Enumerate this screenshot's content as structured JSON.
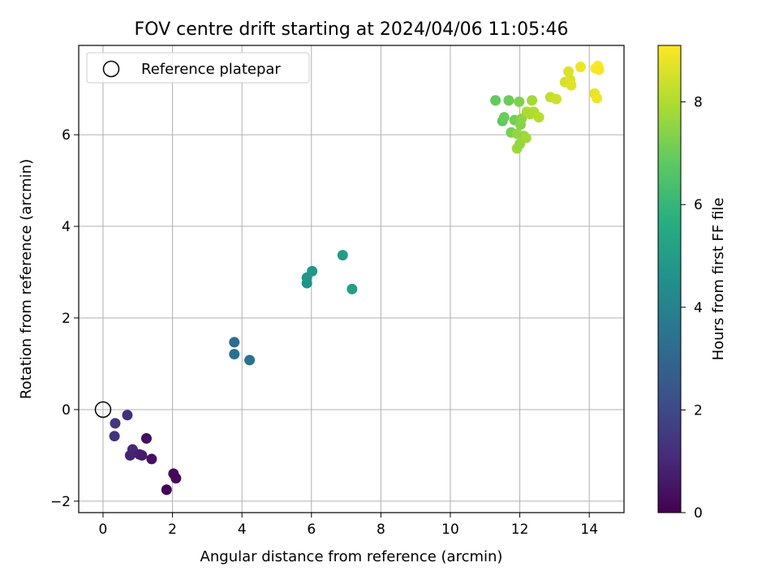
{
  "chart_data": {
    "type": "scatter",
    "title": "FOV centre drift starting at 2024/04/06 11:05:46",
    "xlabel": "Angular distance from reference (arcmin)",
    "ylabel": "Rotation from reference (arcmin)",
    "xlim": [
      -0.7,
      15.0
    ],
    "ylim": [
      -2.25,
      7.95
    ],
    "xticks": [
      0,
      2,
      4,
      6,
      8,
      10,
      12,
      14
    ],
    "yticks": [
      -2,
      0,
      2,
      4,
      6
    ],
    "grid": true,
    "legend": {
      "placement": "top-left",
      "entries": [
        "Reference platepar"
      ]
    },
    "reference_point": {
      "x": 0,
      "y": 0
    },
    "colorbar": {
      "label": "Hours from first FF file",
      "colormap": "viridis",
      "range": [
        0,
        9.1
      ],
      "ticks": [
        0,
        2,
        4,
        6,
        8
      ]
    },
    "points": [
      {
        "x": 0.35,
        "y": -0.3,
        "c": 1.4
      },
      {
        "x": 0.7,
        "y": -0.12,
        "c": 1.2
      },
      {
        "x": 0.33,
        "y": -0.58,
        "c": 1.3
      },
      {
        "x": 0.85,
        "y": -0.87,
        "c": 1.0
      },
      {
        "x": 0.78,
        "y": -1.0,
        "c": 0.9
      },
      {
        "x": 1.05,
        "y": -0.98,
        "c": 0.8
      },
      {
        "x": 1.12,
        "y": -1.0,
        "c": 0.7
      },
      {
        "x": 1.25,
        "y": -0.63,
        "c": 0.3
      },
      {
        "x": 1.4,
        "y": -1.08,
        "c": 0.4
      },
      {
        "x": 2.03,
        "y": -1.4,
        "c": 0.2
      },
      {
        "x": 2.1,
        "y": -1.5,
        "c": 0.2
      },
      {
        "x": 1.83,
        "y": -1.75,
        "c": 0.1
      },
      {
        "x": 3.78,
        "y": 1.47,
        "c": 3.2
      },
      {
        "x": 3.78,
        "y": 1.21,
        "c": 3.3
      },
      {
        "x": 4.22,
        "y": 1.08,
        "c": 3.4
      },
      {
        "x": 5.87,
        "y": 2.76,
        "c": 4.6
      },
      {
        "x": 5.87,
        "y": 2.88,
        "c": 4.7
      },
      {
        "x": 6.02,
        "y": 3.02,
        "c": 4.8
      },
      {
        "x": 6.9,
        "y": 3.37,
        "c": 5.0
      },
      {
        "x": 7.17,
        "y": 2.63,
        "c": 5.1
      },
      {
        "x": 11.3,
        "y": 6.75,
        "c": 6.9
      },
      {
        "x": 11.5,
        "y": 6.3,
        "c": 6.8
      },
      {
        "x": 11.55,
        "y": 6.38,
        "c": 7.0
      },
      {
        "x": 11.68,
        "y": 6.75,
        "c": 7.0
      },
      {
        "x": 11.75,
        "y": 6.05,
        "c": 7.2
      },
      {
        "x": 11.85,
        "y": 6.32,
        "c": 7.1
      },
      {
        "x": 11.92,
        "y": 6.02,
        "c": 7.6
      },
      {
        "x": 11.92,
        "y": 5.7,
        "c": 7.7
      },
      {
        "x": 11.98,
        "y": 6.72,
        "c": 7.3
      },
      {
        "x": 12.0,
        "y": 5.8,
        "c": 7.6
      },
      {
        "x": 12.02,
        "y": 6.22,
        "c": 7.4
      },
      {
        "x": 12.05,
        "y": 6.35,
        "c": 7.5
      },
      {
        "x": 12.12,
        "y": 5.97,
        "c": 7.6
      },
      {
        "x": 12.18,
        "y": 5.93,
        "c": 7.8
      },
      {
        "x": 12.2,
        "y": 6.5,
        "c": 7.9
      },
      {
        "x": 12.3,
        "y": 6.45,
        "c": 7.9
      },
      {
        "x": 12.35,
        "y": 6.75,
        "c": 7.8
      },
      {
        "x": 12.4,
        "y": 6.5,
        "c": 8.0
      },
      {
        "x": 12.55,
        "y": 6.38,
        "c": 8.1
      },
      {
        "x": 12.88,
        "y": 6.82,
        "c": 8.3
      },
      {
        "x": 13.05,
        "y": 6.78,
        "c": 8.4
      },
      {
        "x": 13.3,
        "y": 7.15,
        "c": 8.5
      },
      {
        "x": 13.4,
        "y": 7.38,
        "c": 8.6
      },
      {
        "x": 13.45,
        "y": 7.2,
        "c": 8.6
      },
      {
        "x": 13.48,
        "y": 7.08,
        "c": 8.7
      },
      {
        "x": 13.75,
        "y": 7.48,
        "c": 8.9
      },
      {
        "x": 14.15,
        "y": 6.9,
        "c": 8.8
      },
      {
        "x": 14.18,
        "y": 7.45,
        "c": 9.0
      },
      {
        "x": 14.22,
        "y": 6.8,
        "c": 8.9
      },
      {
        "x": 14.25,
        "y": 7.5,
        "c": 9.1
      },
      {
        "x": 14.28,
        "y": 7.42,
        "c": 9.0
      }
    ]
  }
}
